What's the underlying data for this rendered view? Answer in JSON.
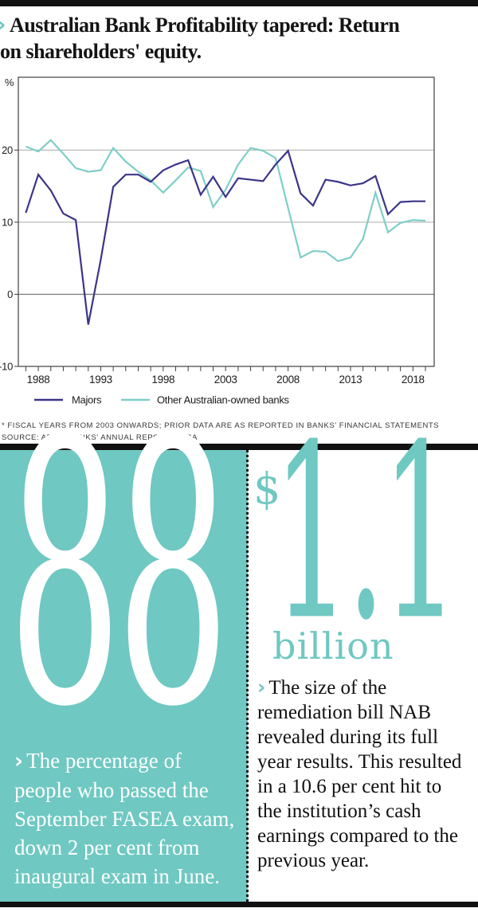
{
  "icons": {
    "chevron": "›"
  },
  "header": {
    "title_line1": "Australian Bank Profitability tapered: Return",
    "title_line2": "on shareholders' equity."
  },
  "chart_data": {
    "type": "line",
    "title": "Australian Bank Profitability tapered: Return on shareholders' equity",
    "ylabel": "%",
    "ylim": [
      -10,
      30
    ],
    "yticks": [
      20,
      10,
      0,
      -10
    ],
    "xticks": [
      1988,
      1993,
      1998,
      2003,
      2008,
      2013,
      2018
    ],
    "grid": true,
    "legend_position": "bottom",
    "x": [
      1987,
      1988,
      1989,
      1990,
      1991,
      1992,
      1993,
      1994,
      1995,
      1996,
      1997,
      1998,
      1999,
      2000,
      2001,
      2002,
      2003,
      2004,
      2005,
      2006,
      2007,
      2008,
      2009,
      2010,
      2011,
      2012,
      2013,
      2014,
      2015,
      2016,
      2017,
      2018,
      2019
    ],
    "series": [
      {
        "name": "Majors",
        "color": "#3B3588",
        "values": [
          11.3,
          16.6,
          14.4,
          11.2,
          10.3,
          -4.2,
          4.8,
          14.9,
          16.6,
          16.6,
          15.6,
          17.2,
          18.0,
          18.6,
          13.8,
          16.3,
          13.5,
          16.1,
          15.9,
          15.7,
          18.0,
          19.9,
          14.0,
          12.3,
          15.9,
          15.6,
          15.1,
          15.4,
          16.4,
          11.1,
          12.8,
          12.9,
          12.9
        ]
      },
      {
        "name": "Other Australian-owned banks",
        "color": "#7FCEC8",
        "values": [
          20.5,
          19.8,
          21.4,
          19.5,
          17.5,
          17.0,
          17.2,
          20.3,
          18.4,
          17.0,
          15.8,
          14.1,
          15.8,
          17.6,
          17.1,
          12.1,
          14.5,
          18.0,
          20.3,
          19.9,
          18.9,
          12.0,
          5.1,
          6.0,
          5.9,
          4.6,
          5.1,
          7.7,
          14.1,
          8.6,
          9.9,
          10.3,
          10.2
        ]
      }
    ]
  },
  "footnote": {
    "line1": "* FISCAL YEARS FROM 2003 ONWARDS; PRIOR DATA ARE AS REPORTED IN BANKS' FINANCIAL STATEMENTS",
    "line2": "SOURCE: APRA; BANKS' ANNUAL REPORTS; RBA"
  },
  "stats": {
    "left": {
      "value": "88",
      "description": "The percentage of people who passed the September FASEA exam, down 2 per cent from inaugural exam in June."
    },
    "right": {
      "currency": "$",
      "value": "1.1",
      "unit": "billion",
      "description": "The size of the remediation bill NAB revealed during its full year results. This resulted in a 10.6 per cent hit to the institution’s cash earnings compared to the previous year."
    }
  },
  "colors": {
    "teal": "#6FC8C2",
    "navy": "#3B3588",
    "teal_line": "#7FCEC8",
    "bar": "#111111"
  }
}
